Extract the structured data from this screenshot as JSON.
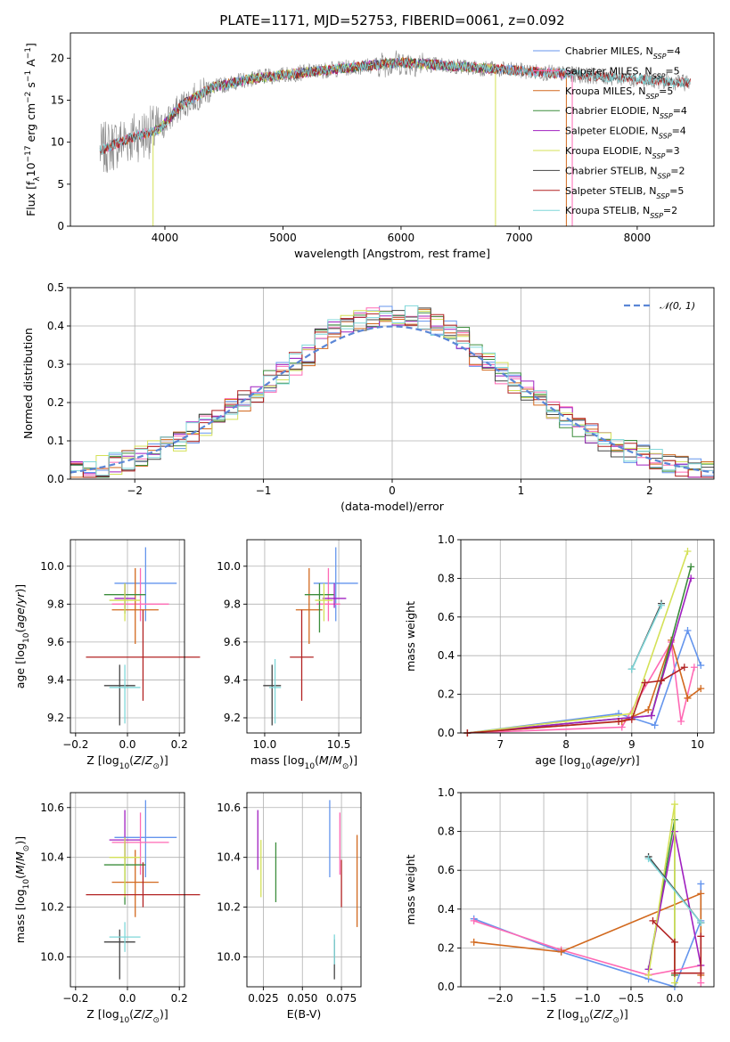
{
  "chart_data": [
    {
      "id": "spectrum",
      "type": "line",
      "title": "PLATE=1171, MJD=52753, FIBERID=0061, z=0.092",
      "xlabel": "wavelength [Angstrom, rest frame]",
      "ylabel": "Flux [fλ10⁻¹⁷ erg cm⁻² s⁻¹ A⁻¹]",
      "xlim": [
        3200,
        8650
      ],
      "ylim": [
        0,
        23
      ],
      "xticks": [
        4000,
        5000,
        6000,
        7000,
        8000
      ],
      "yticks": [
        0,
        5,
        10,
        15,
        20
      ],
      "grid": false,
      "legend_placement": "upper right",
      "continuum_profile": {
        "x": [
          3450,
          3700,
          3950,
          4150,
          4400,
          4700,
          5000,
          5500,
          6000,
          6500,
          7000,
          7500,
          8000,
          8450
        ],
        "y": [
          9,
          10.5,
          11.5,
          14.5,
          16.5,
          17.5,
          18,
          18.8,
          19.5,
          19,
          18.5,
          18,
          17.5,
          17
        ]
      },
      "series": [
        {
          "name": "Chabrier MILES, N",
          "sub": "SSP",
          "eq": "=4",
          "color": "#6495ed",
          "x_range": [
            3500,
            7450
          ]
        },
        {
          "name": "Salpeter MILES, N",
          "sub": "SSP",
          "eq": "=5",
          "color": "#ff69b4",
          "x_range": [
            3500,
            7450
          ]
        },
        {
          "name": "Kroupa MILES, N",
          "sub": "SSP",
          "eq": "=5",
          "color": "#d2691e",
          "x_range": [
            3500,
            7400
          ]
        },
        {
          "name": "Chabrier ELODIE, N",
          "sub": "SSP",
          "eq": "=4",
          "color": "#3c8d3c",
          "x_range": [
            3900,
            6800
          ]
        },
        {
          "name": "Salpeter ELODIE, N",
          "sub": "SSP",
          "eq": "=4",
          "color": "#a020c0",
          "x_range": [
            3900,
            6800
          ]
        },
        {
          "name": "Kroupa ELODIE, N",
          "sub": "SSP",
          "eq": "=3",
          "color": "#d4e157",
          "x_range": [
            3900,
            6800
          ]
        },
        {
          "name": "Chabrier STELIB, N",
          "sub": "SSP",
          "eq": "=2",
          "color": "#444444",
          "x_range": [
            3450,
            8450
          ]
        },
        {
          "name": "Salpeter STELIB, N",
          "sub": "SSP",
          "eq": "=5",
          "color": "#b22222",
          "x_range": [
            3450,
            8450
          ]
        },
        {
          "name": "Kroupa STELIB, N",
          "sub": "SSP",
          "eq": "=2",
          "color": "#7fd7d9",
          "x_range": [
            3450,
            8450
          ]
        }
      ],
      "observed_spectrum": {
        "color": "#888888",
        "x_range": [
          3450,
          8450
        ]
      }
    },
    {
      "id": "residuals",
      "type": "line",
      "xlabel": "(data-model)/error",
      "ylabel": "Normed distribution",
      "xlim": [
        -2.5,
        2.5
      ],
      "ylim": [
        0,
        0.5
      ],
      "xticks": [
        -2,
        -1,
        0,
        1,
        2
      ],
      "yticks": [
        0,
        0.1,
        0.2,
        0.3,
        0.4,
        0.5
      ],
      "grid": true,
      "legend_placement": "upper right",
      "reference": {
        "label": "𝒩(0, 1)",
        "color": "#5b86d6",
        "mu": 0,
        "sigma": 1
      },
      "bin_width": 0.1,
      "series_colors": [
        "#6495ed",
        "#ff69b4",
        "#d2691e",
        "#3c8d3c",
        "#a020c0",
        "#d4e157",
        "#444444",
        "#b22222",
        "#7fd7d9"
      ]
    },
    {
      "id": "z-vs-age",
      "type": "scatter",
      "xlabel": "Z [log10(Z/Z⊙)]",
      "ylabel": "age [log10(age/yr)]",
      "xlim": [
        -0.22,
        0.22
      ],
      "ylim": [
        9.12,
        10.14
      ],
      "xticks": [
        -0.2,
        0.0,
        0.2
      ],
      "yticks": [
        9.2,
        9.4,
        9.6,
        9.8,
        10.0
      ],
      "grid": true,
      "points": [
        {
          "x": 0.07,
          "y": 9.91,
          "xerr": 0.12,
          "yerr_lo": 0.2,
          "yerr_hi": 0.19,
          "color": "#6495ed"
        },
        {
          "x": 0.05,
          "y": 9.8,
          "xerr": 0.11,
          "yerr_lo": 0.09,
          "yerr_hi": 0.19,
          "color": "#ff69b4"
        },
        {
          "x": 0.03,
          "y": 9.77,
          "xerr": 0.09,
          "yerr_lo": 0.18,
          "yerr_hi": 0.22,
          "color": "#d2691e"
        },
        {
          "x": -0.01,
          "y": 9.85,
          "xerr": 0.08,
          "yerr_lo": 0.1,
          "yerr_hi": 0.06,
          "color": "#3c8d3c"
        },
        {
          "x": -0.01,
          "y": 9.83,
          "xerr": 0.04,
          "yerr_lo": 0.05,
          "yerr_hi": 0.08,
          "color": "#a020c0"
        },
        {
          "x": -0.01,
          "y": 9.82,
          "xerr": 0.06,
          "yerr_lo": 0.11,
          "yerr_hi": 0.09,
          "color": "#d4e157"
        },
        {
          "x": -0.03,
          "y": 9.37,
          "xerr": 0.06,
          "yerr_lo": 0.21,
          "yerr_hi": 0.11,
          "color": "#444444"
        },
        {
          "x": 0.06,
          "y": 9.52,
          "xerr": 0.22,
          "yerr_lo": 0.23,
          "yerr_hi": 0.25,
          "color": "#b22222"
        },
        {
          "x": -0.01,
          "y": 9.36,
          "xerr": 0.06,
          "yerr_lo": 0.19,
          "yerr_hi": 0.12,
          "color": "#7fd7d9"
        }
      ]
    },
    {
      "id": "mass-vs-age",
      "type": "scatter",
      "xlabel": "mass [log10(M/M⊙)]",
      "ylabel": "",
      "xlim": [
        9.88,
        10.65
      ],
      "ylim": [
        9.12,
        10.14
      ],
      "xticks": [
        10.0,
        10.5
      ],
      "yticks": [
        9.2,
        9.4,
        9.6,
        9.8,
        10.0
      ],
      "grid": true,
      "points": [
        {
          "x": 10.48,
          "y": 9.91,
          "xerr": 0.15,
          "yerr_lo": 0.2,
          "yerr_hi": 0.19,
          "color": "#6495ed"
        },
        {
          "x": 10.43,
          "y": 9.8,
          "xerr": 0.08,
          "yerr_lo": 0.09,
          "yerr_hi": 0.19,
          "color": "#ff69b4"
        },
        {
          "x": 10.3,
          "y": 9.77,
          "xerr": 0.09,
          "yerr_lo": 0.18,
          "yerr_hi": 0.22,
          "color": "#d2691e"
        },
        {
          "x": 10.37,
          "y": 9.85,
          "xerr": 0.1,
          "yerr_lo": 0.2,
          "yerr_hi": 0.06,
          "color": "#3c8d3c"
        },
        {
          "x": 10.47,
          "y": 9.83,
          "xerr": 0.08,
          "yerr_lo": 0.05,
          "yerr_hi": 0.08,
          "color": "#a020c0"
        },
        {
          "x": 10.4,
          "y": 9.82,
          "xerr": 0.06,
          "yerr_lo": 0.11,
          "yerr_hi": 0.09,
          "color": "#d4e157"
        },
        {
          "x": 10.05,
          "y": 9.37,
          "xerr": 0.06,
          "yerr_lo": 0.21,
          "yerr_hi": 0.11,
          "color": "#444444"
        },
        {
          "x": 10.25,
          "y": 9.52,
          "xerr": 0.08,
          "yerr_lo": 0.23,
          "yerr_hi": 0.25,
          "color": "#b22222"
        },
        {
          "x": 10.07,
          "y": 9.36,
          "xerr": 0.04,
          "yerr_lo": 0.19,
          "yerr_hi": 0.15,
          "color": "#7fd7d9"
        }
      ]
    },
    {
      "id": "age-vs-mass-weight",
      "type": "line",
      "xlabel": "age [log10(age/yr)]",
      "ylabel": "mass weight",
      "xlim": [
        6.4,
        10.25
      ],
      "ylim": [
        0,
        1.0
      ],
      "xticks": [
        7,
        8,
        9,
        10
      ],
      "yticks": [
        0.0,
        0.2,
        0.4,
        0.6,
        0.8,
        1.0
      ],
      "grid": true,
      "series": [
        {
          "color": "#6495ed",
          "x": [
            6.5,
            8.8,
            9.35,
            9.85,
            10.05
          ],
          "y": [
            0.0,
            0.1,
            0.04,
            0.53,
            0.35
          ]
        },
        {
          "color": "#ff69b4",
          "x": [
            6.5,
            8.85,
            9.6,
            9.75,
            9.95
          ],
          "y": [
            0.0,
            0.03,
            0.47,
            0.06,
            0.34
          ]
        },
        {
          "color": "#d2691e",
          "x": [
            6.5,
            8.85,
            9.25,
            9.6,
            9.85,
            10.05
          ],
          "y": [
            0.0,
            0.06,
            0.12,
            0.48,
            0.18,
            0.23
          ]
        },
        {
          "color": "#3c8d3c",
          "x": [
            6.5,
            9.3,
            9.9
          ],
          "y": [
            0.0,
            0.09,
            0.86
          ]
        },
        {
          "color": "#a020c0",
          "x": [
            6.5,
            9.3,
            9.9
          ],
          "y": [
            0.0,
            0.09,
            0.8
          ]
        },
        {
          "color": "#d4e157",
          "x": [
            6.5,
            9.0,
            9.85
          ],
          "y": [
            0.0,
            0.1,
            0.94
          ]
        },
        {
          "color": "#444444",
          "x": [
            9.0,
            9.45
          ],
          "y": [
            0.33,
            0.67
          ]
        },
        {
          "color": "#b22222",
          "x": [
            6.5,
            8.8,
            9.0,
            9.2,
            9.45,
            9.8
          ],
          "y": [
            0.0,
            0.06,
            0.07,
            0.26,
            0.27,
            0.34
          ]
        },
        {
          "color": "#7fd7d9",
          "x": [
            9.0,
            9.45
          ],
          "y": [
            0.33,
            0.66
          ]
        }
      ]
    },
    {
      "id": "z-vs-mass",
      "type": "scatter",
      "xlabel": "Z [log10(Z/Z⊙)]",
      "ylabel": "mass [log10(M/M⊙)]",
      "xlim": [
        -0.22,
        0.22
      ],
      "ylim": [
        9.88,
        10.66
      ],
      "xticks": [
        -0.2,
        0.0,
        0.2
      ],
      "yticks": [
        10.0,
        10.2,
        10.4,
        10.6
      ],
      "grid": true,
      "points": [
        {
          "x": 0.07,
          "y": 10.48,
          "xerr": 0.12,
          "yerr_lo": 0.16,
          "yerr_hi": 0.15,
          "color": "#6495ed"
        },
        {
          "x": 0.05,
          "y": 10.46,
          "xerr": 0.11,
          "yerr_lo": 0.13,
          "yerr_hi": 0.12,
          "color": "#ff69b4"
        },
        {
          "x": 0.03,
          "y": 10.3,
          "xerr": 0.09,
          "yerr_lo": 0.14,
          "yerr_hi": 0.13,
          "color": "#d2691e"
        },
        {
          "x": -0.01,
          "y": 10.37,
          "xerr": 0.08,
          "yerr_lo": 0.16,
          "yerr_hi": 0.09,
          "color": "#3c8d3c"
        },
        {
          "x": -0.01,
          "y": 10.47,
          "xerr": 0.06,
          "yerr_lo": 0.08,
          "yerr_hi": 0.12,
          "color": "#a020c0"
        },
        {
          "x": -0.01,
          "y": 10.4,
          "xerr": 0.06,
          "yerr_lo": 0.16,
          "yerr_hi": 0.08,
          "color": "#d4e157"
        },
        {
          "x": -0.03,
          "y": 10.06,
          "xerr": 0.06,
          "yerr_lo": 0.15,
          "yerr_hi": 0.05,
          "color": "#444444"
        },
        {
          "x": 0.06,
          "y": 10.25,
          "xerr": 0.22,
          "yerr_lo": 0.05,
          "yerr_hi": 0.13,
          "color": "#b22222"
        },
        {
          "x": -0.01,
          "y": 10.08,
          "xerr": 0.06,
          "yerr_lo": 0.06,
          "yerr_hi": 0.06,
          "color": "#7fd7d9"
        }
      ]
    },
    {
      "id": "ebv-vs-mass",
      "type": "scatter",
      "xlabel": "E(B-V)",
      "ylabel": "",
      "xlim": [
        0.0145,
        0.0875
      ],
      "ylim": [
        9.88,
        10.66
      ],
      "xticks": [
        0.025,
        0.05,
        0.075
      ],
      "yticks": [
        10.0,
        10.2,
        10.4,
        10.6
      ],
      "grid": true,
      "points": [
        {
          "x": 0.0675,
          "y": 10.48,
          "yerr_lo": 0.16,
          "yerr_hi": 0.15,
          "color": "#6495ed"
        },
        {
          "x": 0.074,
          "y": 10.46,
          "yerr_lo": 0.13,
          "yerr_hi": 0.12,
          "color": "#ff69b4"
        },
        {
          "x": 0.085,
          "y": 10.3,
          "yerr_lo": 0.18,
          "yerr_hi": 0.19,
          "color": "#d2691e"
        },
        {
          "x": 0.033,
          "y": 10.37,
          "yerr_lo": 0.15,
          "yerr_hi": 0.09,
          "color": "#3c8d3c"
        },
        {
          "x": 0.0215,
          "y": 10.47,
          "yerr_lo": 0.12,
          "yerr_hi": 0.12,
          "color": "#a020c0"
        },
        {
          "x": 0.0235,
          "y": 10.4,
          "yerr_lo": 0.16,
          "yerr_hi": 0.07,
          "color": "#d4e157"
        },
        {
          "x": 0.0705,
          "y": 10.0,
          "yerr_lo": 0.09,
          "yerr_hi": 0.07,
          "color": "#444444"
        },
        {
          "x": 0.075,
          "y": 10.28,
          "yerr_lo": 0.08,
          "yerr_hi": 0.11,
          "color": "#b22222"
        },
        {
          "x": 0.0705,
          "y": 10.02,
          "yerr_lo": 0.05,
          "yerr_hi": 0.07,
          "color": "#7fd7d9"
        }
      ]
    },
    {
      "id": "z-vs-mass-weight",
      "type": "line",
      "xlabel": "Z [log10(Z/Z⊙)]",
      "ylabel": "mass weight",
      "xlim": [
        -2.45,
        0.45
      ],
      "ylim": [
        0,
        1.0
      ],
      "xticks": [
        -2.0,
        -1.5,
        -1.0,
        -0.5,
        0.0
      ],
      "yticks": [
        0.0,
        0.2,
        0.4,
        0.6,
        0.8,
        1.0
      ],
      "grid": true,
      "series": [
        {
          "color": "#6495ed",
          "x": [
            -2.3,
            -1.3,
            -0.3,
            0.0,
            0.3,
            0.3
          ],
          "y": [
            0.35,
            0.18,
            0.04,
            0.0,
            0.34,
            0.53
          ]
        },
        {
          "color": "#ff69b4",
          "x": [
            -2.3,
            -1.3,
            -0.3,
            0.3,
            0.3
          ],
          "y": [
            0.34,
            0.19,
            0.06,
            0.11,
            0.02
          ]
        },
        {
          "color": "#d2691e",
          "x": [
            -2.3,
            -1.3,
            0.3,
            0.3
          ],
          "y": [
            0.23,
            0.18,
            0.48,
            0.06
          ]
        },
        {
          "color": "#3c8d3c",
          "x": [
            -0.3,
            0.0,
            0.0
          ],
          "y": [
            0.09,
            0.86,
            0.06
          ]
        },
        {
          "color": "#a020c0",
          "x": [
            -0.3,
            0.0,
            0.3
          ],
          "y": [
            0.09,
            0.8,
            0.11
          ]
        },
        {
          "color": "#d4e157",
          "x": [
            -0.3,
            0.0,
            0.0
          ],
          "y": [
            0.06,
            0.94,
            0.02
          ]
        },
        {
          "color": "#444444",
          "x": [
            -0.3,
            0.3
          ],
          "y": [
            0.67,
            0.33
          ]
        },
        {
          "color": "#b22222",
          "x": [
            -0.25,
            0.0,
            0.0,
            0.3,
            0.3
          ],
          "y": [
            0.34,
            0.23,
            0.07,
            0.07,
            0.26
          ]
        },
        {
          "color": "#7fd7d9",
          "x": [
            -0.3,
            0.3
          ],
          "y": [
            0.66,
            0.33
          ]
        }
      ]
    }
  ]
}
